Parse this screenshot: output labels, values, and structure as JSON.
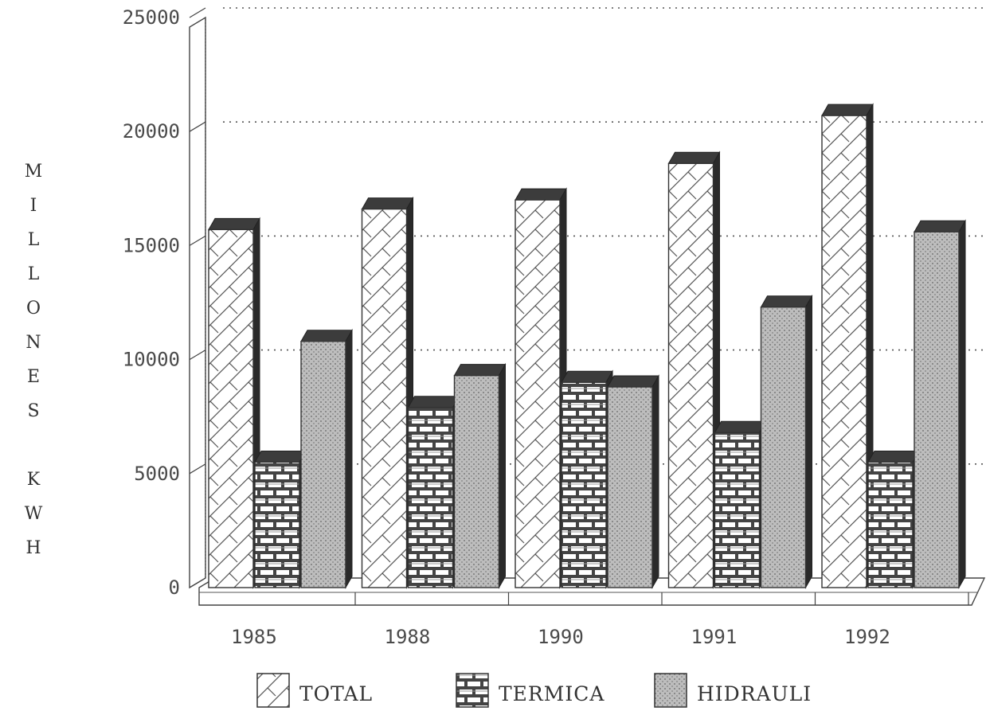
{
  "chart_data": {
    "type": "bar",
    "ylabel": "MILLONES KWH",
    "ylabel_chars": [
      "M",
      "I",
      "L",
      "L",
      "O",
      "N",
      "E",
      "S",
      "",
      "K",
      "W",
      "H"
    ],
    "categories": [
      "1985",
      "1988",
      "1990",
      "1991",
      "1992"
    ],
    "series": [
      {
        "name": "TOTAL",
        "values": [
          15700,
          16600,
          17000,
          18600,
          20700
        ]
      },
      {
        "name": "TERMICA",
        "values": [
          5500,
          7900,
          9000,
          6800,
          5500
        ]
      },
      {
        "name": "HIDRAULI",
        "values": [
          10800,
          9300,
          8800,
          12300,
          15600
        ]
      }
    ],
    "ylim": [
      0,
      25000
    ],
    "yticks": [
      0,
      5000,
      10000,
      15000,
      20000,
      25000
    ],
    "grid": true,
    "legend": "bottom",
    "colors": {
      "total": "#ffffff",
      "termica": "#6a6a6a",
      "hidrauli": "#b4b4b4",
      "ink": "#333333"
    }
  }
}
